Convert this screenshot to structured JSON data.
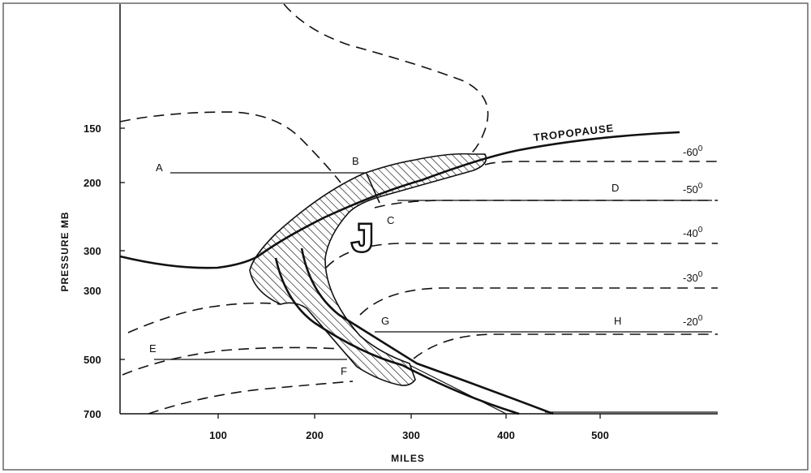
{
  "axes": {
    "y_title": "PRESSURE MB",
    "x_title": "MILES",
    "y_ticks": [
      "150",
      "200",
      "300",
      "300",
      "500",
      "700"
    ],
    "x_ticks": [
      "100",
      "200",
      "300",
      "400",
      "500"
    ]
  },
  "labels": {
    "tropopause": "TROPOPAUSE",
    "jet": "J",
    "points": [
      "A",
      "B",
      "C",
      "D",
      "E",
      "F",
      "G",
      "H"
    ]
  },
  "isotherms": [
    {
      "base": "-60",
      "sup": "0"
    },
    {
      "base": "-50",
      "sup": "0"
    },
    {
      "base": "-40",
      "sup": "0"
    },
    {
      "base": "-30",
      "sup": "0"
    },
    {
      "base": "-20",
      "sup": "0"
    }
  ],
  "colors": {
    "ink": "#111111",
    "background": "#ffffff"
  }
}
